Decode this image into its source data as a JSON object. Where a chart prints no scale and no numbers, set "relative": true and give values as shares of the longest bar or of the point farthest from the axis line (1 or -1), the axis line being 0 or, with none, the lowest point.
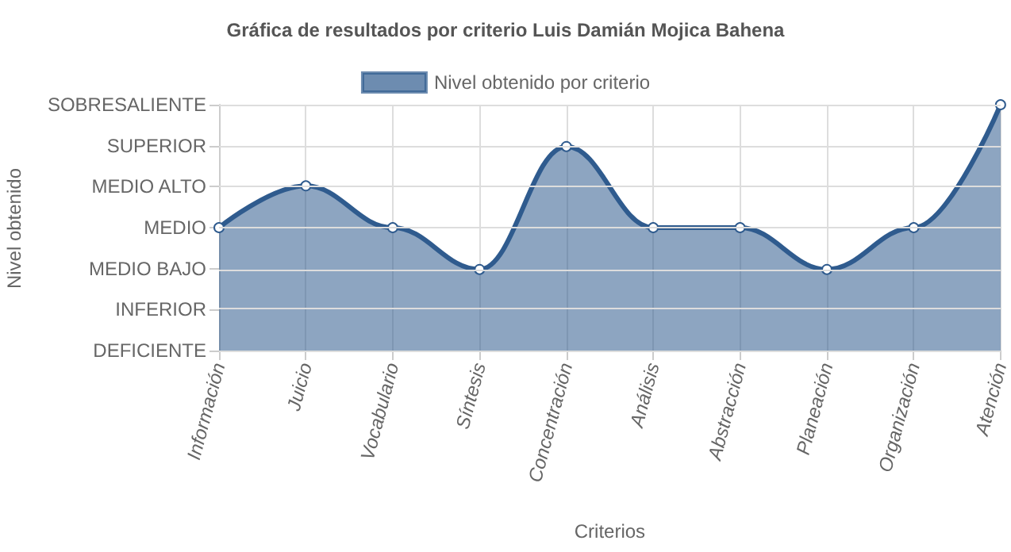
{
  "chart_data": {
    "type": "area",
    "title": "Gráfica de resultados por criterio Luis Damián Mojica Bahena",
    "xlabel": "Criterios",
    "categories": [
      "Información",
      "Juicio",
      "Vocabulario",
      "Síntesis",
      "Concentración",
      "Análisis",
      "Abstracción",
      "Planeación",
      "Organización",
      "Atención"
    ],
    "relative": true,
    "annotations": [
      "Nivel obtenido",
      "SOBRESALIENTE",
      "SUPERIOR",
      "MEDIO ALTO",
      "MEDIO",
      "MEDIO BAJO",
      "INFERIOR",
      "DEFICIENTE"
    ],
    "series": [
      {
        "name": "Nivel obtenido por criterio",
        "color": "#2f5b8e",
        "values": [
          0.5,
          0.67,
          0.5,
          0.33,
          0.83,
          0.5,
          0.5,
          0.33,
          0.5,
          1
        ]
      }
    ],
    "grid": true,
    "legend": "top",
    "marker": "circle",
    "line_style": "solid"
  }
}
